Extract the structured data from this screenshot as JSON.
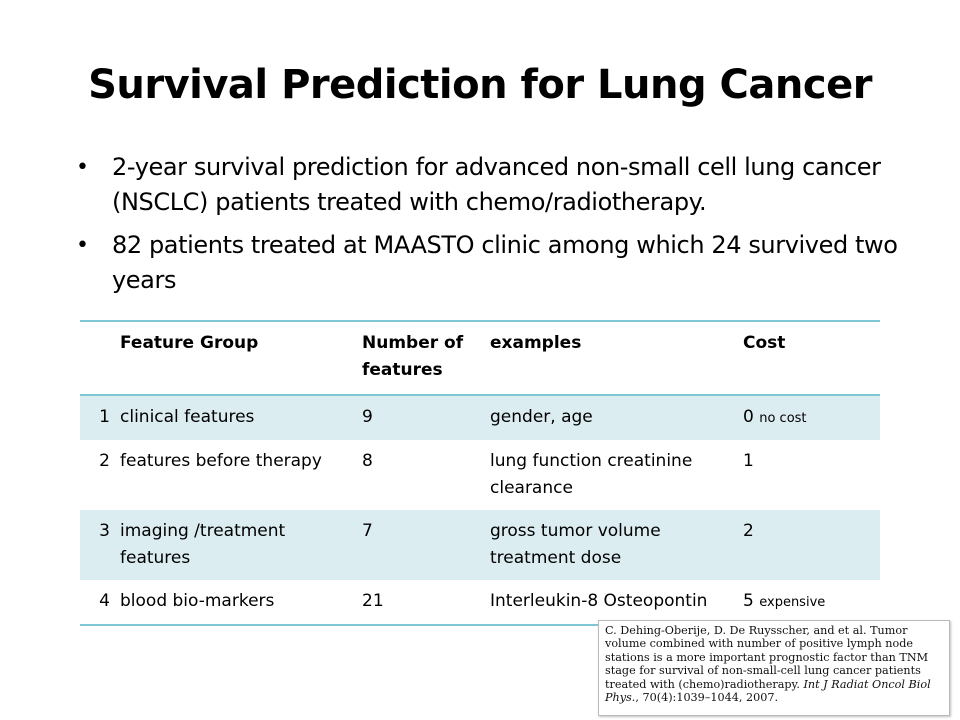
{
  "slide": {
    "title": "Survival Prediction for Lung Cancer",
    "bullets": [
      "2-year survival prediction for advanced non-small cell lung cancer (NSCLC) patients treated with chemo/radiotherapy.",
      "82 patients treated at MAASTO clinic among which 24 survived two years"
    ]
  },
  "table": {
    "headers": {
      "index": "",
      "group": "Feature Group",
      "count": "Number of features",
      "examples": "examples",
      "cost": "Cost"
    },
    "rows": [
      {
        "index": "1",
        "group": "clinical features",
        "count": "9",
        "examples": "gender, age",
        "cost": "0",
        "cost_note": "no cost"
      },
      {
        "index": "2",
        "group": "features before therapy",
        "count": "8",
        "examples": "lung function creatinine clearance",
        "cost": "1",
        "cost_note": ""
      },
      {
        "index": "3",
        "group": "imaging /treatment features",
        "count": "7",
        "examples": "gross tumor volume treatment dose",
        "cost": "2",
        "cost_note": ""
      },
      {
        "index": "4",
        "group": "blood bio-markers",
        "count": "21",
        "examples": "Interleukin-8 Osteopontin",
        "cost": "5",
        "cost_note": "expensive"
      }
    ]
  },
  "citation": {
    "text": "C. Dehing-Oberije, D. De Ruysscher, and et al. Tumor volume combined with number of positive lymph node stations is a more important prognostic factor than TNM stage for survival of non-small-cell lung cancer patients treated with (chemo)radiotherapy.",
    "journal": "Int J Radiat Oncol Biol Phys.",
    "details": ", 70(4):1039–1044, 2007."
  },
  "colors": {
    "rule": "#7fc7d4",
    "row_shade": "#dcedf2"
  }
}
